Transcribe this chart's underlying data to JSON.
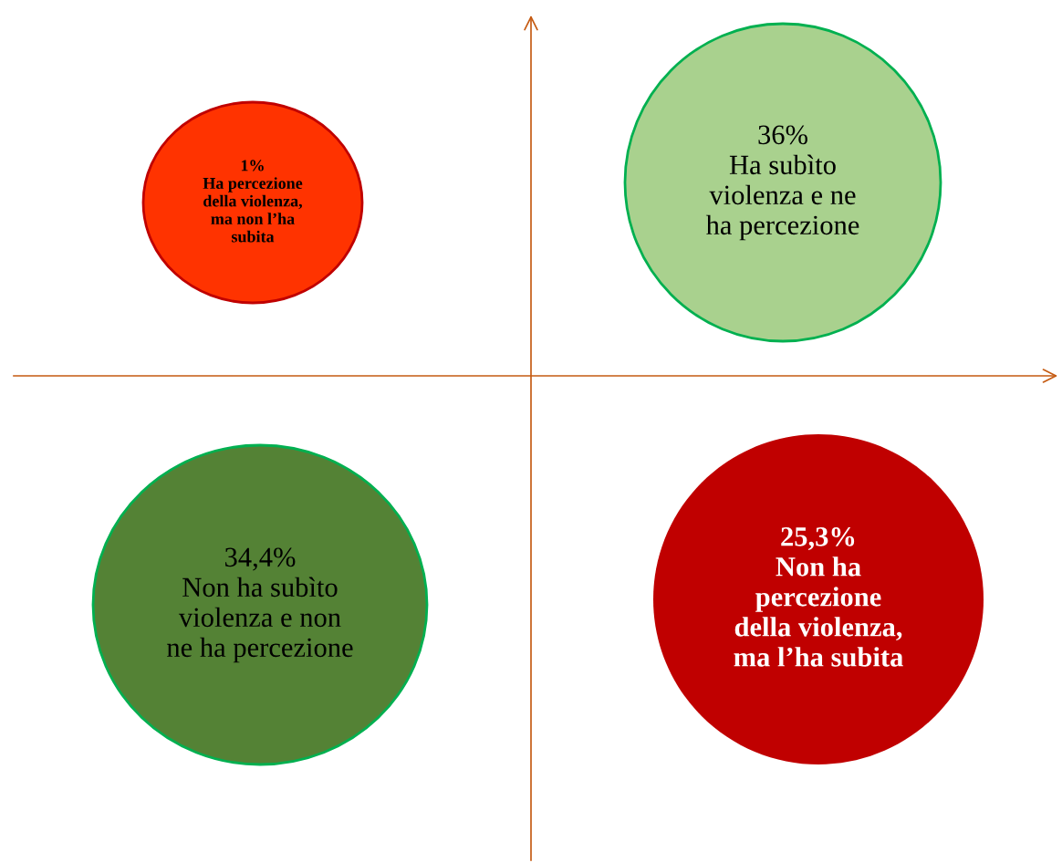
{
  "chart_data": {
    "type": "other",
    "categories": [
      "Ha percezione\ndella violenza,\nma non l’ha\nsubita",
      "Ha subìto\nviolenza e ne\nha percezione",
      "Non ha subìto\nviolenza e non\nne ha percezione",
      "Non ha\npercezione\ndella violenza,\nma l’ha subita"
    ],
    "values": [
      1,
      36,
      34.4,
      25.3
    ],
    "value_labels": [
      "1%",
      "36%",
      "34,4%",
      "25,3%"
    ],
    "colors": [
      "#ff3300",
      "#a9d18e",
      "#548235",
      "#c00000"
    ]
  }
}
